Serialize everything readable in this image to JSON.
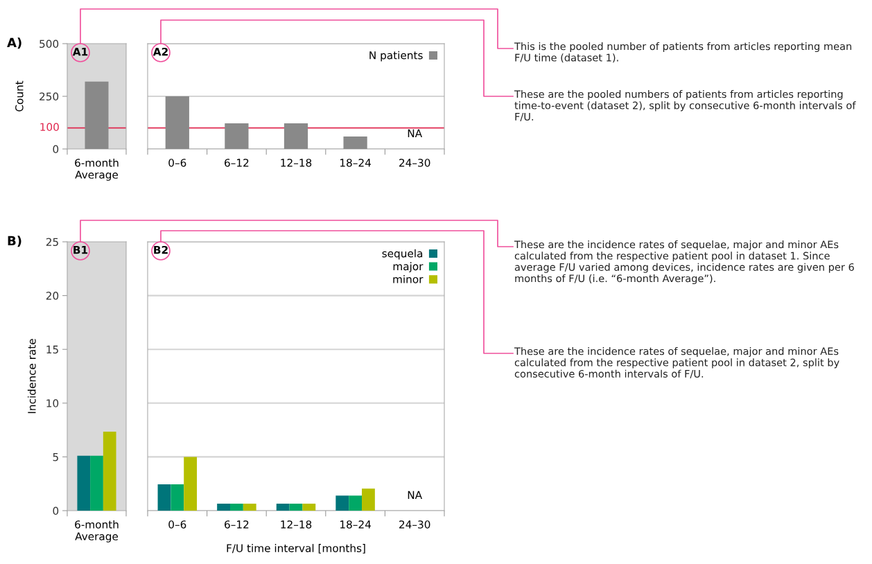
{
  "chart_data": [
    {
      "type": "bar",
      "ylabel": "Count",
      "categories": [
        "6-month Average"
      ],
      "values": [
        320
      ],
      "color": "#898989",
      "ylim": [
        0,
        500
      ],
      "yticks": [
        0,
        250,
        500
      ],
      "grid": false,
      "legend": false,
      "ref_lines": [
        {
          "axis": "y",
          "value": 100,
          "label": "100",
          "color": "#e0284f"
        }
      ],
      "annotations": [
        "A)",
        "A1"
      ]
    },
    {
      "type": "bar",
      "categories": [
        "0–6",
        "6–12",
        "12–18",
        "18–24",
        "24–30"
      ],
      "series": [
        {
          "name": "N patients",
          "color": "#898989",
          "values": [
            250,
            122,
            122,
            59,
            null
          ]
        }
      ],
      "ylim": [
        0,
        500
      ],
      "yticks": [
        0,
        250,
        500
      ],
      "tick_labels": "x",
      "grid": "y",
      "legend": "top right",
      "ref_lines": [
        {
          "axis": "y",
          "value": 100,
          "color": "#e0284f"
        }
      ],
      "annotations": [
        "A2",
        "NA",
        "This is the pooled number of patients from articles reporting mean F/U time (dataset 1).",
        "These are the pooled numbers of patients from articles reporting time-to-event (dataset 2), split by consecutive 6-month intervals of F/U."
      ]
    },
    {
      "type": "bar",
      "ylabel": "Incidence rate",
      "categories": [
        "6-month Average"
      ],
      "series": [
        {
          "color": "#00757a",
          "values": [
            5.1
          ]
        },
        {
          "color": "#00a866",
          "values": [
            5.1
          ]
        },
        {
          "color": "#b5bf00",
          "values": [
            7.35
          ]
        }
      ],
      "ylim": [
        0,
        25
      ],
      "yticks": [
        0,
        5,
        10,
        15,
        20,
        25
      ],
      "grid": false,
      "legend": false,
      "annotations": [
        "B)",
        "B1"
      ]
    },
    {
      "type": "bar",
      "xlabel": "F/U time interval [months]",
      "categories": [
        "0–6",
        "6–12",
        "12–18",
        "18–24",
        "24–30"
      ],
      "series": [
        {
          "name": "sequela",
          "color": "#00757a",
          "values": [
            2.45,
            0.65,
            0.65,
            1.4,
            null
          ]
        },
        {
          "name": "major",
          "color": "#00a866",
          "values": [
            2.45,
            0.65,
            0.65,
            1.4,
            null
          ]
        },
        {
          "name": "minor",
          "color": "#b5bf00",
          "values": [
            5.0,
            0.65,
            0.65,
            2.05,
            null
          ]
        }
      ],
      "ylim": [
        0,
        25
      ],
      "yticks": [
        0,
        5,
        10,
        15,
        20,
        25
      ],
      "tick_labels": "x",
      "grid": "y",
      "legend": "top right",
      "annotations": [
        "B2",
        "NA",
        "These are the incidence rates of sequelae, major and minor AEs calculated from the respective patient pool in dataset 1. Since average F/U varied among devices, incidence rates are given per 6 months of F/U (i.e. “6-month Average”).",
        "These are the incidence rates of sequelae, major and minor AEs calculated from the respective patient pool in dataset 2, split by consecutive 6-month intervals of F/U."
      ]
    }
  ]
}
